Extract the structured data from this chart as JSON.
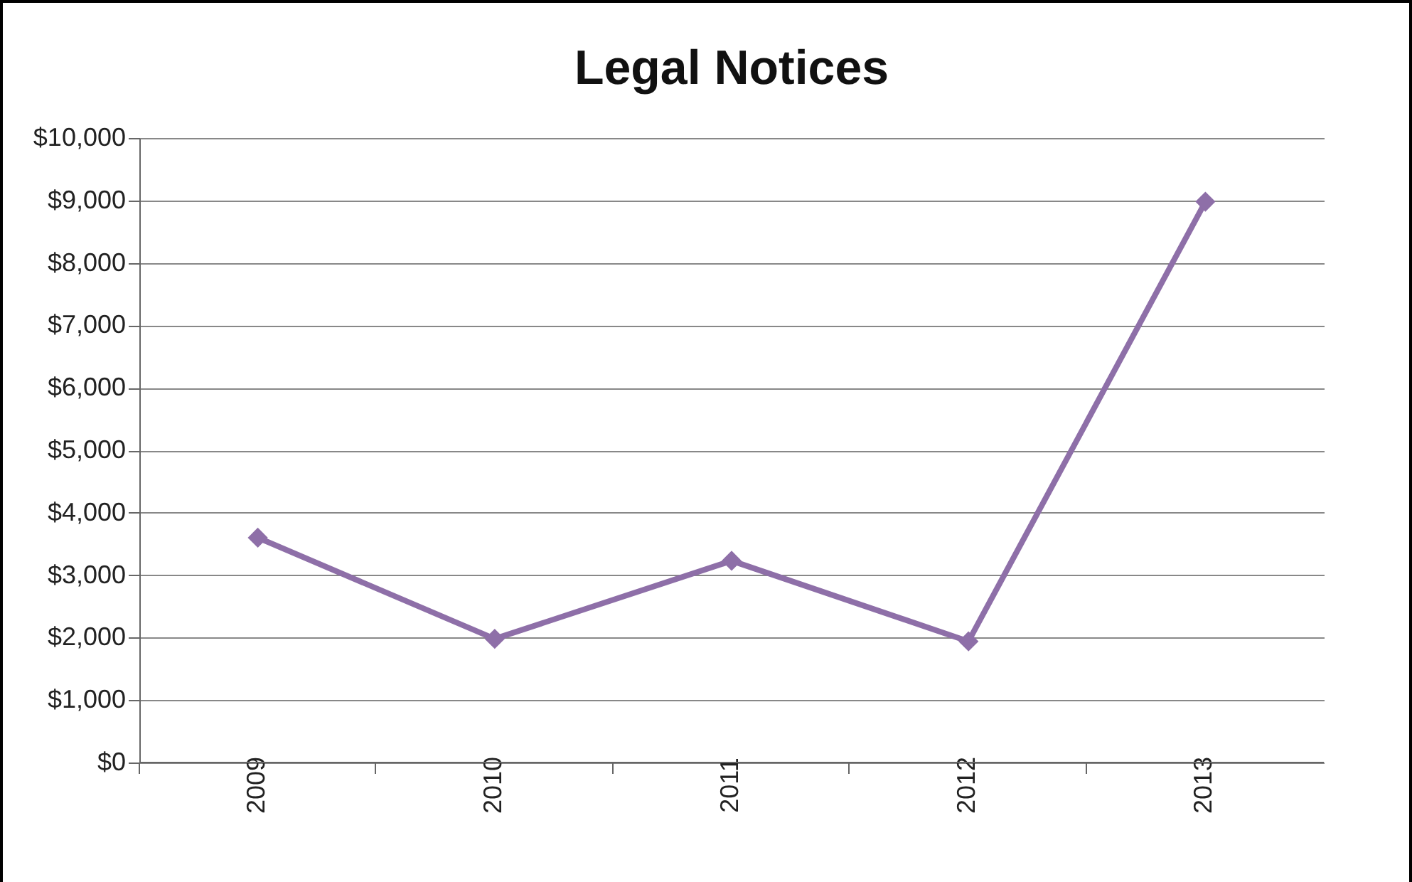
{
  "chart_data": {
    "type": "line",
    "title": "Legal Notices",
    "categories": [
      "2009",
      "2010",
      "2011",
      "2012",
      "2013"
    ],
    "series": [
      {
        "color": "#8e6fa8",
        "values": [
          3600,
          1980,
          3230,
          1940,
          8980
        ]
      }
    ],
    "ylim": [
      0,
      10000
    ],
    "yticks": [
      {
        "value": 0,
        "label": "$0"
      },
      {
        "value": 1000,
        "label": "$1,000"
      },
      {
        "value": 2000,
        "label": "$2,000"
      },
      {
        "value": 3000,
        "label": "$3,000"
      },
      {
        "value": 4000,
        "label": "$4,000"
      },
      {
        "value": 5000,
        "label": "$5,000"
      },
      {
        "value": 6000,
        "label": "$6,000"
      },
      {
        "value": 7000,
        "label": "$7,000"
      },
      {
        "value": 8000,
        "label": "$8,000"
      },
      {
        "value": 9000,
        "label": "$9,000"
      },
      {
        "value": 10000,
        "label": "$10,000"
      }
    ],
    "grid": "y",
    "legend": false,
    "marker": "diamond",
    "line_style": "solid"
  }
}
